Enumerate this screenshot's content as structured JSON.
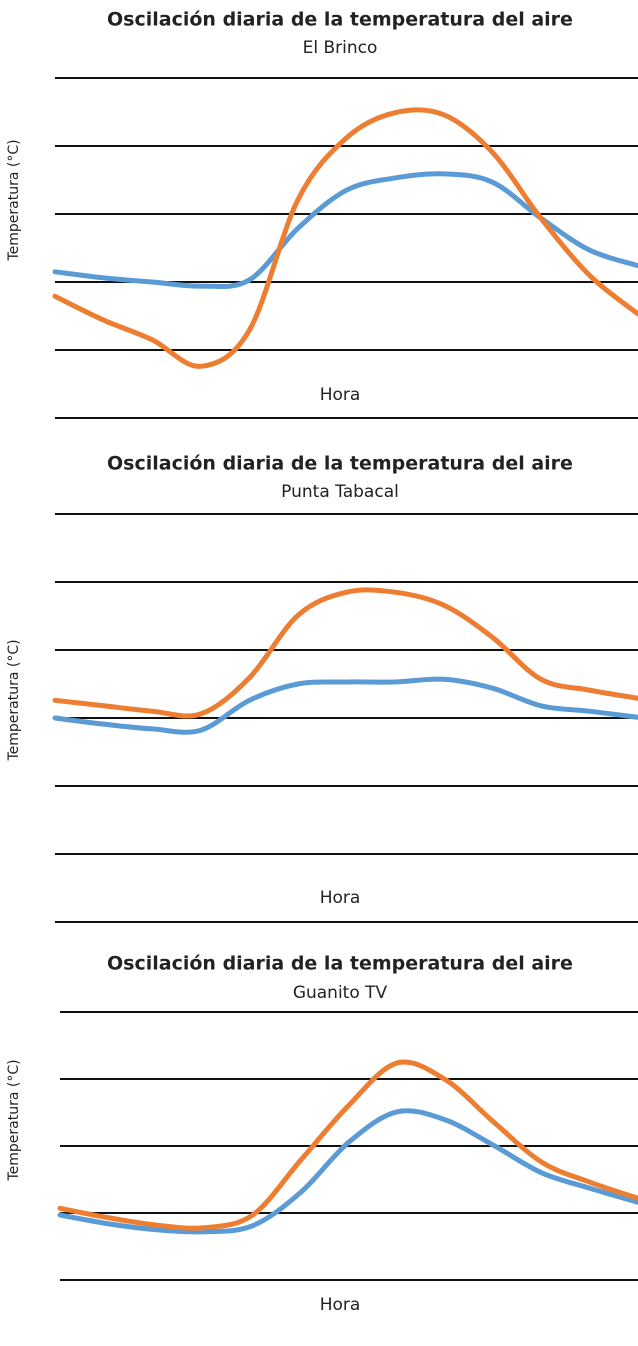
{
  "chart_data": [
    {
      "type": "line",
      "title": "Oscilación diaria de la temperatura del aire",
      "subtitle": "El Brinco",
      "y_label": "Temperatura (°C)",
      "x_label": "Hora",
      "grid": true,
      "ylim": [
        0,
        5
      ],
      "yticks": [
        0,
        1,
        2,
        3,
        4,
        5
      ],
      "series": [
        {
          "color": "#5b9bd5",
          "values": [
            2.15,
            2.06,
            2.0,
            1.94,
            2.03,
            2.79,
            3.35,
            3.53,
            3.59,
            3.47,
            2.94,
            2.47,
            2.24
          ]
        },
        {
          "color": "#ed7d31",
          "values": [
            1.79,
            1.44,
            1.15,
            0.76,
            1.29,
            3.21,
            4.12,
            4.49,
            4.46,
            3.91,
            2.94,
            2.1,
            1.53
          ]
        }
      ]
    },
    {
      "type": "line",
      "title": "Oscilación diaria de la temperatura del aire",
      "subtitle": "Punta Tabacal",
      "y_label": "Temperatura (°C)",
      "x_label": "Hora",
      "grid": true,
      "ylim": [
        0,
        6
      ],
      "yticks": [
        0,
        1,
        2,
        3,
        4,
        5,
        6
      ],
      "series": [
        {
          "color": "#5b9bd5",
          "values": [
            3.0,
            2.91,
            2.84,
            2.82,
            3.26,
            3.5,
            3.53,
            3.53,
            3.57,
            3.44,
            3.18,
            3.1,
            3.01
          ]
        },
        {
          "color": "#ed7d31",
          "values": [
            3.26,
            3.18,
            3.1,
            3.06,
            3.59,
            4.51,
            4.85,
            4.85,
            4.66,
            4.19,
            3.57,
            3.41,
            3.29
          ]
        }
      ]
    },
    {
      "type": "line",
      "title": "Oscilación diaria de la temperatura del aire",
      "subtitle": "Guanito TV",
      "y_label": "Temperatura (°C)",
      "x_label": "Hora",
      "grid": true,
      "ylim": [
        0,
        4
      ],
      "yticks": [
        0,
        1,
        2,
        3,
        4
      ],
      "series": [
        {
          "color": "#5b9bd5",
          "values": [
            0.97,
            0.84,
            0.75,
            0.72,
            0.81,
            1.31,
            2.06,
            2.51,
            2.39,
            2.01,
            1.6,
            1.37,
            1.16
          ]
        },
        {
          "color": "#ed7d31",
          "values": [
            1.07,
            0.93,
            0.82,
            0.78,
            0.97,
            1.79,
            2.61,
            3.24,
            2.99,
            2.36,
            1.76,
            1.46,
            1.22
          ]
        }
      ]
    }
  ]
}
